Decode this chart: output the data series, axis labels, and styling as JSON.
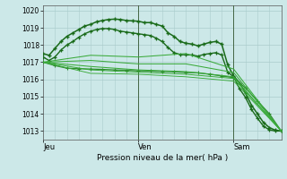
{
  "bg_color": "#cce8e8",
  "grid_color": "#aacccc",
  "xlabel": "Pression niveau de la mer( hPa )",
  "xtick_labels": [
    "Jeu",
    "Ven",
    "Sam"
  ],
  "xtick_positions": [
    0,
    48,
    96
  ],
  "ylim": [
    1012.5,
    1020.3
  ],
  "ytick_vals": [
    1013,
    1014,
    1015,
    1016,
    1017,
    1018,
    1019,
    1020
  ],
  "total_hours": 120,
  "series": [
    {
      "name": "s1_main_high",
      "color": "#1a6b1a",
      "lw": 1.1,
      "marker": "+",
      "ms": 3.5,
      "mew": 1.0,
      "x": [
        0,
        3,
        6,
        9,
        12,
        15,
        18,
        21,
        24,
        27,
        30,
        33,
        36,
        39,
        42,
        45,
        48,
        51,
        54,
        57,
        60,
        63,
        66,
        69,
        72,
        75,
        78,
        81,
        84,
        87,
        90,
        93,
        96,
        99,
        102,
        105,
        108,
        111,
        114,
        117,
        120
      ],
      "y": [
        1017.5,
        1017.4,
        1017.8,
        1018.2,
        1018.5,
        1018.7,
        1018.9,
        1019.1,
        1019.2,
        1019.35,
        1019.42,
        1019.48,
        1019.5,
        1019.48,
        1019.42,
        1019.4,
        1019.38,
        1019.3,
        1019.3,
        1019.2,
        1019.1,
        1018.7,
        1018.5,
        1018.2,
        1018.1,
        1018.05,
        1017.95,
        1018.05,
        1018.15,
        1018.2,
        1018.05,
        1016.85,
        1016.2,
        1015.8,
        1015.2,
        1014.5,
        1014.0,
        1013.5,
        1013.2,
        1013.05,
        1013.0
      ]
    },
    {
      "name": "s2_main_mid",
      "color": "#1a6b1a",
      "lw": 1.0,
      "marker": "+",
      "ms": 3.0,
      "mew": 0.9,
      "x": [
        0,
        3,
        6,
        9,
        12,
        15,
        18,
        21,
        24,
        27,
        30,
        33,
        36,
        39,
        42,
        45,
        48,
        51,
        54,
        57,
        60,
        63,
        66,
        69,
        72,
        75,
        78,
        81,
        84,
        87,
        90,
        93,
        96,
        99,
        102,
        105,
        108,
        111,
        114,
        117,
        120
      ],
      "y": [
        1017.3,
        1017.1,
        1017.3,
        1017.7,
        1018.0,
        1018.2,
        1018.45,
        1018.65,
        1018.8,
        1018.9,
        1018.95,
        1018.95,
        1018.9,
        1018.8,
        1018.75,
        1018.7,
        1018.65,
        1018.6,
        1018.55,
        1018.4,
        1018.2,
        1017.85,
        1017.55,
        1017.45,
        1017.42,
        1017.42,
        1017.35,
        1017.45,
        1017.5,
        1017.55,
        1017.42,
        1016.42,
        1016.15,
        1015.45,
        1014.95,
        1014.25,
        1013.75,
        1013.28,
        1013.07,
        1013.0,
        1013.0
      ]
    },
    {
      "name": "s3_lower_marked",
      "color": "#2d8b2d",
      "lw": 0.9,
      "marker": "+",
      "ms": 3.0,
      "mew": 0.8,
      "x": [
        0,
        6,
        12,
        18,
        24,
        30,
        36,
        42,
        48,
        54,
        60,
        66,
        72,
        78,
        84,
        90,
        96,
        102,
        108,
        114,
        120
      ],
      "y": [
        1017.0,
        1016.8,
        1016.65,
        1016.62,
        1016.6,
        1016.58,
        1016.55,
        1016.53,
        1016.5,
        1016.48,
        1016.46,
        1016.44,
        1016.4,
        1016.38,
        1016.3,
        1016.2,
        1016.1,
        1015.5,
        1014.75,
        1014.0,
        1013.0
      ]
    },
    {
      "name": "s4_fan1",
      "color": "#3aaa3a",
      "lw": 0.75,
      "marker": null,
      "ms": 0,
      "mew": 0,
      "x": [
        0,
        24,
        48,
        72,
        96,
        120
      ],
      "y": [
        1017.0,
        1017.4,
        1017.3,
        1017.5,
        1016.6,
        1013.0
      ]
    },
    {
      "name": "s5_fan2",
      "color": "#3aaa3a",
      "lw": 0.75,
      "marker": null,
      "ms": 0,
      "mew": 0,
      "x": [
        0,
        24,
        48,
        72,
        96,
        120
      ],
      "y": [
        1017.0,
        1017.1,
        1016.9,
        1016.9,
        1016.4,
        1013.0
      ]
    },
    {
      "name": "s6_fan3",
      "color": "#3aaa3a",
      "lw": 0.75,
      "marker": null,
      "ms": 0,
      "mew": 0,
      "x": [
        0,
        24,
        48,
        72,
        96,
        120
      ],
      "y": [
        1017.0,
        1016.75,
        1016.55,
        1016.45,
        1016.15,
        1013.0
      ]
    },
    {
      "name": "s7_fan4",
      "color": "#3aaa3a",
      "lw": 0.7,
      "marker": null,
      "ms": 0,
      "mew": 0,
      "x": [
        0,
        24,
        48,
        72,
        96,
        120
      ],
      "y": [
        1017.0,
        1016.55,
        1016.42,
        1016.3,
        1016.05,
        1013.0
      ]
    },
    {
      "name": "s8_fan5_lowest",
      "color": "#3aaa3a",
      "lw": 0.65,
      "marker": null,
      "ms": 0,
      "mew": 0,
      "x": [
        0,
        24,
        48,
        72,
        96,
        120
      ],
      "y": [
        1017.0,
        1016.35,
        1016.3,
        1016.15,
        1015.9,
        1013.0
      ]
    }
  ],
  "vline_positions": [
    48,
    96
  ],
  "vline_color": "#446644",
  "vline_lw": 0.7
}
